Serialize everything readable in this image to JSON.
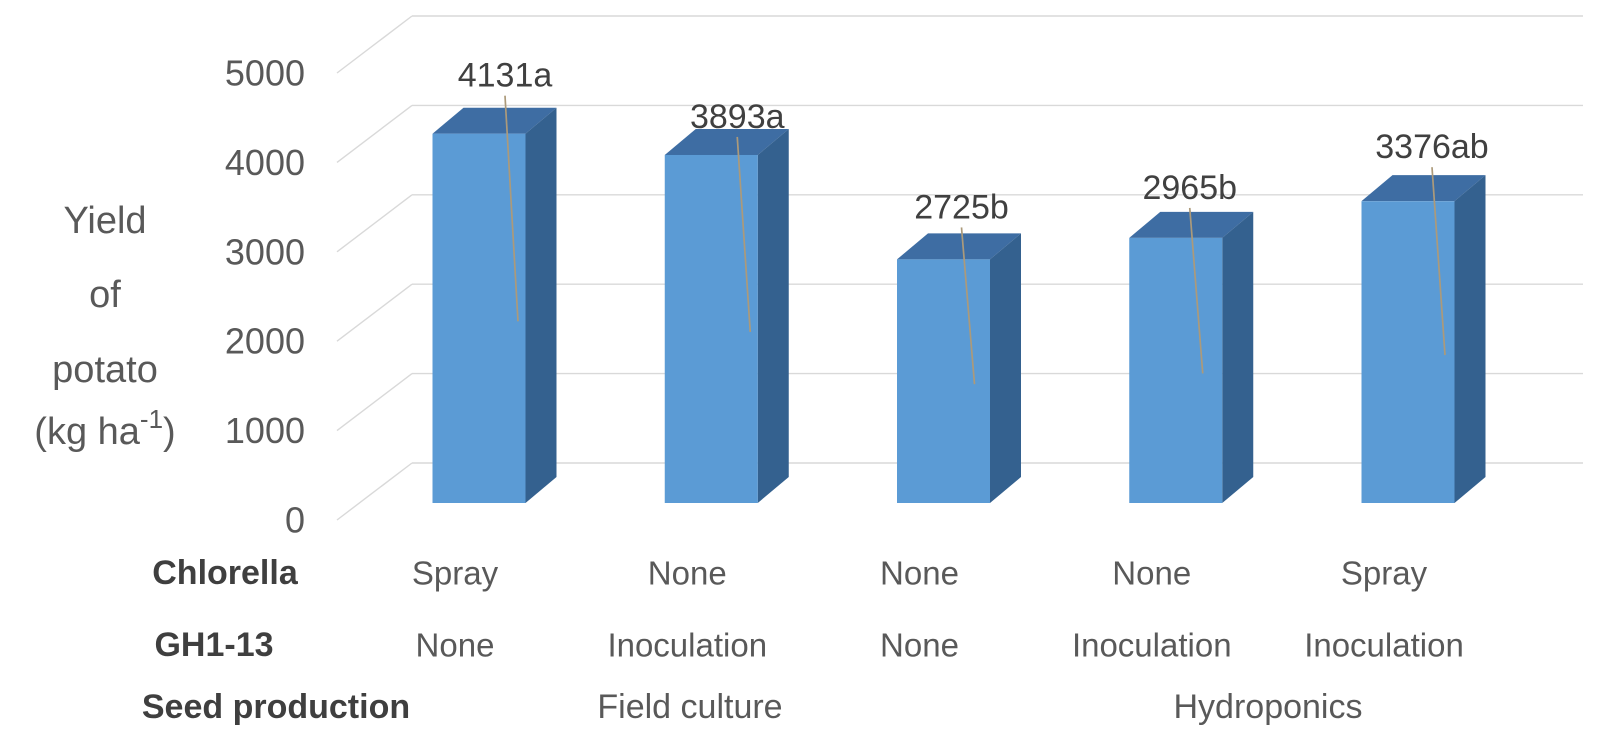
{
  "chart_data": {
    "type": "bar",
    "style": "3d-column",
    "title": "",
    "ylabel_lines": [
      "Yield",
      "of",
      "potato"
    ],
    "ylabel_unit": {
      "pre": "(kg ha",
      "sup": "-1",
      "post": ")"
    },
    "y_axis": {
      "min": 0,
      "max": 5000,
      "tick_step": 1000,
      "tick_labels": [
        "5000",
        "4000",
        "3000",
        "2000",
        "1000",
        "0"
      ],
      "grid": true
    },
    "series": [
      {
        "name": "Yield of potato",
        "values": [
          4131,
          3893,
          2725,
          2965,
          3376
        ],
        "data_labels": [
          "4131a",
          "3893a",
          "2725b",
          "2965b",
          "3376ab"
        ]
      }
    ],
    "category_rows": [
      {
        "header": "Chlorella",
        "values": [
          "Spray",
          "None",
          "None",
          "None",
          "Spray"
        ]
      },
      {
        "header": "GH1-13",
        "values": [
          "None",
          "Inoculation",
          "None",
          "Inoculation",
          "Inoculation"
        ]
      },
      {
        "header": "Seed production",
        "groups": [
          "Field culture",
          "Hydroponics"
        ]
      }
    ],
    "legend": "none",
    "colors": {
      "bar_front": "#5b9bd5",
      "bar_top": "#3e6da3",
      "bar_side": "#34618f",
      "gridline": "#d9d9d9",
      "leader_line": "#ac9a7a",
      "axis_text": "#595959",
      "label_text": "#404040",
      "header_text": "#3f3f3f",
      "background": "#ffffff"
    }
  }
}
